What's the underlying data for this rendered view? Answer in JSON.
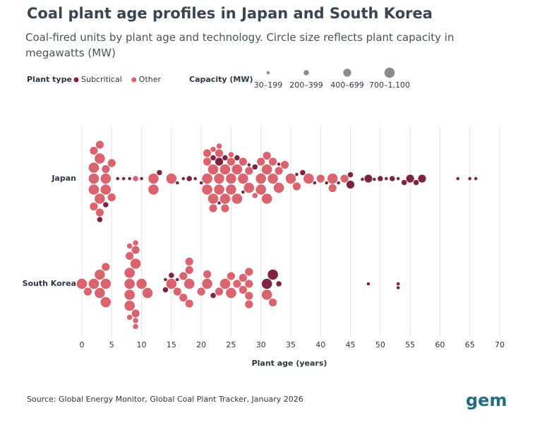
{
  "chart_data": {
    "type": "beeswarm",
    "title": "Coal plant age profiles in Japan and South Korea",
    "subtitle": "Coal-fired units by plant age and technology. Circle size reflects plant capacity in megawatts (MW)",
    "legend_title": "Plant type",
    "size_legend": {
      "title": "Capacity (MW)",
      "bins": [
        {
          "label": "30–199",
          "min": 30,
          "max": 199
        },
        {
          "label": "200–399",
          "min": 200,
          "max": 399
        },
        {
          "label": "400–699",
          "min": 400,
          "max": 699
        },
        {
          "label": "700–1,100",
          "min": 700,
          "max": 1100
        }
      ]
    },
    "categories": [
      "Japan",
      "South Korea"
    ],
    "x_label": "Plant age (years)",
    "xlim": [
      0,
      70
    ],
    "xticks": [
      0,
      5,
      10,
      15,
      20,
      25,
      30,
      35,
      40,
      45,
      50,
      55,
      60,
      65,
      70
    ],
    "grid": true,
    "series": [
      {
        "name": "Subcritical",
        "color": "#7d2442",
        "x": [
          [
            3,
            4,
            6,
            7,
            8,
            10,
            13,
            16,
            17,
            18,
            19,
            20,
            22,
            23,
            23,
            24,
            26,
            27,
            28,
            29,
            33,
            36,
            37,
            39,
            41,
            43,
            45,
            45,
            47,
            48,
            49,
            50,
            51,
            52,
            53,
            54,
            55,
            56,
            57,
            63,
            65,
            66
          ],
          [
            14,
            14,
            15,
            16,
            22,
            31,
            32,
            33,
            48,
            53,
            53
          ]
        ],
        "capacity": [
          [
            250,
            200,
            150,
            100,
            150,
            150,
            200,
            100,
            150,
            250,
            150,
            100,
            200,
            400,
            150,
            200,
            250,
            150,
            100,
            250,
            150,
            150,
            200,
            100,
            100,
            150,
            500,
            250,
            150,
            400,
            150,
            250,
            150,
            250,
            150,
            350,
            500,
            250,
            400,
            150,
            100,
            150
          ],
          [
            200,
            150,
            250,
            150,
            200,
            800,
            800,
            200,
            100,
            100,
            100
          ]
        ]
      },
      {
        "name": "Other",
        "color": "#d9646f",
        "x": [
          [
            2,
            2,
            2,
            2,
            2,
            3,
            3,
            3,
            3,
            4,
            4,
            4,
            5,
            5,
            9,
            12,
            12,
            15,
            21,
            21,
            21,
            21,
            22,
            22,
            22,
            22,
            23,
            23,
            23,
            23,
            24,
            24,
            24,
            25,
            25,
            25,
            25,
            26,
            26,
            27,
            27,
            28,
            28,
            29,
            30,
            30,
            30,
            31,
            31,
            31,
            32,
            32,
            33,
            33,
            34,
            35,
            36,
            38,
            40,
            42,
            42,
            44
          ],
          [
            0,
            1,
            2,
            3,
            3,
            4,
            4,
            4,
            8,
            8,
            8,
            8,
            8,
            8,
            8,
            9,
            9,
            9,
            9,
            9,
            9,
            10,
            11,
            15,
            16,
            17,
            17,
            18,
            18,
            18,
            18,
            20,
            21,
            21,
            23,
            24,
            25,
            25,
            26,
            27,
            27,
            28,
            28,
            28,
            28,
            31,
            32
          ]
        ],
        "capacity": [
          [
            1000,
            700,
            600,
            500,
            800,
            700,
            1000,
            600,
            500,
            800,
            700,
            600,
            500,
            600,
            250,
            700,
            1000,
            1000,
            1000,
            700,
            600,
            500,
            1000,
            800,
            600,
            300,
            700,
            500,
            1000,
            250,
            1000,
            600,
            700,
            1000,
            800,
            600,
            350,
            700,
            1000,
            500,
            700,
            1000,
            600,
            300,
            700,
            1000,
            600,
            1000,
            700,
            500,
            600,
            800,
            700,
            500,
            600,
            700,
            500,
            700,
            600,
            700,
            500,
            600
          ],
          [
            1000,
            500,
            800,
            1000,
            1000,
            500,
            800,
            1000,
            800,
            800,
            1000,
            800,
            500,
            250,
            300,
            1000,
            500,
            500,
            250,
            250,
            300,
            1000,
            800,
            800,
            500,
            500,
            500,
            800,
            500,
            500,
            500,
            500,
            800,
            500,
            500,
            800,
            800,
            500,
            500,
            500,
            500,
            500,
            500,
            500,
            500,
            800,
            500
          ]
        ]
      }
    ]
  },
  "footer": {
    "source": "Source: Global Energy Monitor, Global Coal Plant Tracker, January 2026",
    "logo": "gem"
  }
}
